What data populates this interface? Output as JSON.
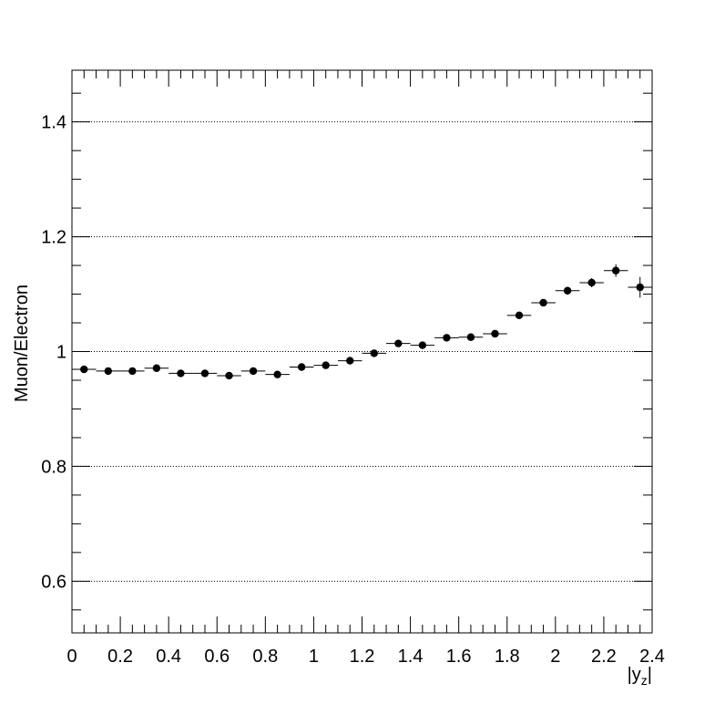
{
  "chart_data": {
    "type": "scatter",
    "title": "",
    "xlabel": "|y_Z|",
    "ylabel": "Muon/Electron",
    "xlim": [
      0,
      2.4
    ],
    "ylim": [
      0.51,
      1.49
    ],
    "x_ticks": [
      0,
      0.2,
      0.4,
      0.6,
      0.8,
      1,
      1.2,
      1.4,
      1.6,
      1.8,
      2,
      2.2,
      2.4
    ],
    "x_tick_labels": [
      "0",
      "0.2",
      "0.4",
      "0.6",
      "0.8",
      "1",
      "1.2",
      "1.4",
      "1.6",
      "1.8",
      "2",
      "2.2",
      "2.4"
    ],
    "y_ticks": [
      0.6,
      0.8,
      1.0,
      1.2,
      1.4
    ],
    "y_tick_labels": [
      "0.6",
      "0.8",
      "1",
      "1.2",
      "1.4"
    ],
    "grid": "horizontal dotted at major y ticks",
    "marker_color": "#000000",
    "series": [
      {
        "x": [
          0.05,
          0.15,
          0.25,
          0.35,
          0.45,
          0.55,
          0.65,
          0.75,
          0.85,
          0.95,
          1.05,
          1.15,
          1.25,
          1.35,
          1.45,
          1.55,
          1.65,
          1.75,
          1.85,
          1.95,
          2.05,
          2.15,
          2.25,
          2.35
        ],
        "y": [
          0.969,
          0.966,
          0.966,
          0.971,
          0.962,
          0.962,
          0.958,
          0.966,
          0.96,
          0.973,
          0.976,
          0.984,
          0.997,
          1.014,
          1.011,
          1.024,
          1.025,
          1.031,
          1.063,
          1.085,
          1.106,
          1.12,
          1.141,
          1.112
        ],
        "x_err": 0.05,
        "y_err": [
          0.004,
          0.003,
          0.003,
          0.003,
          0.003,
          0.003,
          0.003,
          0.003,
          0.003,
          0.003,
          0.003,
          0.003,
          0.004,
          0.004,
          0.004,
          0.004,
          0.005,
          0.005,
          0.006,
          0.006,
          0.007,
          0.008,
          0.011,
          0.018
        ]
      }
    ]
  }
}
